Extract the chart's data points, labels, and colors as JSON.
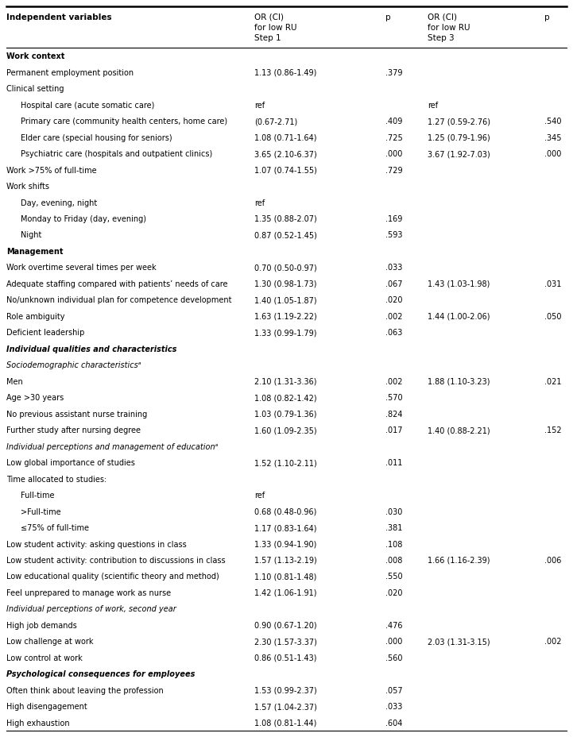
{
  "col_headers": [
    "Independent variables",
    "OR (CI)\nfor low RU\nStep 1",
    "p",
    "OR (CI)\nfor low RU\nStep 3",
    "p"
  ],
  "rows": [
    {
      "label": "Work context",
      "style": "bold",
      "indent": 0,
      "or1": "",
      "p1": "",
      "or3": "",
      "p3": ""
    },
    {
      "label": "Permanent employment position",
      "style": "normal",
      "indent": 0,
      "or1": "1.13 (0.86-1.49)",
      "p1": ".379",
      "or3": "",
      "p3": ""
    },
    {
      "label": "Clinical setting",
      "style": "normal",
      "indent": 0,
      "or1": "",
      "p1": "",
      "or3": "",
      "p3": ""
    },
    {
      "label": "Hospital care (acute somatic care)",
      "style": "normal",
      "indent": 1,
      "or1": "ref",
      "p1": "",
      "or3": "ref",
      "p3": ""
    },
    {
      "label": "Primary care (community health centers, home care)",
      "style": "normal",
      "indent": 1,
      "or1": "(0.67-2.71)",
      "p1": ".409",
      "or3": "1.27 (0.59-2.76)",
      "p3": ".540"
    },
    {
      "label": "Elder care (special housing for seniors)",
      "style": "normal",
      "indent": 1,
      "or1": "1.08 (0.71-1.64)",
      "p1": ".725",
      "or3": "1.25 (0.79-1.96)",
      "p3": ".345"
    },
    {
      "label": "Psychiatric care (hospitals and outpatient clinics)",
      "style": "normal",
      "indent": 1,
      "or1": "3.65 (2.10-6.37)",
      "p1": ".000",
      "or3": "3.67 (1.92-7.03)",
      "p3": ".000"
    },
    {
      "label": "Work >75% of full-time",
      "style": "normal",
      "indent": 0,
      "or1": "1.07 (0.74-1.55)",
      "p1": ".729",
      "or3": "",
      "p3": ""
    },
    {
      "label": "Work shifts",
      "style": "normal",
      "indent": 0,
      "or1": "",
      "p1": "",
      "or3": "",
      "p3": ""
    },
    {
      "label": "Day, evening, night",
      "style": "normal",
      "indent": 1,
      "or1": "ref",
      "p1": "",
      "or3": "",
      "p3": ""
    },
    {
      "label": "Monday to Friday (day, evening)",
      "style": "normal",
      "indent": 1,
      "or1": "1.35 (0.88-2.07)",
      "p1": ".169",
      "or3": "",
      "p3": ""
    },
    {
      "label": "Night",
      "style": "normal",
      "indent": 1,
      "or1": "0.87 (0.52-1.45)",
      "p1": ".593",
      "or3": "",
      "p3": ""
    },
    {
      "label": "Management",
      "style": "bold",
      "indent": 0,
      "or1": "",
      "p1": "",
      "or3": "",
      "p3": ""
    },
    {
      "label": "Work overtime several times per week",
      "style": "normal",
      "indent": 0,
      "or1": "0.70 (0.50-0.97)",
      "p1": ".033",
      "or3": "",
      "p3": ""
    },
    {
      "label": "Adequate staffing compared with patients’ needs of care",
      "style": "normal",
      "indent": 0,
      "or1": "1.30 (0.98-1.73)",
      "p1": ".067",
      "or3": "1.43 (1.03-1.98)",
      "p3": ".031"
    },
    {
      "label": "No/unknown individual plan for competence development",
      "style": "normal",
      "indent": 0,
      "or1": "1.40 (1.05-1.87)",
      "p1": ".020",
      "or3": "",
      "p3": ""
    },
    {
      "label": "Role ambiguity",
      "style": "normal",
      "indent": 0,
      "or1": "1.63 (1.19-2.22)",
      "p1": ".002",
      "or3": "1.44 (1.00-2.06)",
      "p3": ".050"
    },
    {
      "label": "Deficient leadership",
      "style": "normal",
      "indent": 0,
      "or1": "1.33 (0.99-1.79)",
      "p1": ".063",
      "or3": "",
      "p3": ""
    },
    {
      "label": "Individual qualities and characteristics",
      "style": "bold-italic",
      "indent": 0,
      "or1": "",
      "p1": "",
      "or3": "",
      "p3": ""
    },
    {
      "label": "Sociodemographic characteristicsᵃ",
      "style": "italic",
      "indent": 0,
      "or1": "",
      "p1": "",
      "or3": "",
      "p3": ""
    },
    {
      "label": "Men",
      "style": "normal",
      "indent": 0,
      "or1": "2.10 (1.31-3.36)",
      "p1": ".002",
      "or3": "1.88 (1.10-3.23)",
      "p3": ".021"
    },
    {
      "label": "Age >30 years",
      "style": "normal",
      "indent": 0,
      "or1": "1.08 (0.82-1.42)",
      "p1": ".570",
      "or3": "",
      "p3": ""
    },
    {
      "label": "No previous assistant nurse training",
      "style": "normal",
      "indent": 0,
      "or1": "1.03 (0.79-1.36)",
      "p1": ".824",
      "or3": "",
      "p3": ""
    },
    {
      "label": "Further study after nursing degree",
      "style": "normal",
      "indent": 0,
      "or1": "1.60 (1.09-2.35)",
      "p1": ".017",
      "or3": "1.40 (0.88-2.21)",
      "p3": ".152"
    },
    {
      "label": "Individual perceptions and management of educationᵃ",
      "style": "italic",
      "indent": 0,
      "or1": "",
      "p1": "",
      "or3": "",
      "p3": ""
    },
    {
      "label": "Low global importance of studies",
      "style": "normal",
      "indent": 0,
      "or1": "1.52 (1.10-2.11)",
      "p1": ".011",
      "or3": "",
      "p3": ""
    },
    {
      "label": "Time allocated to studies:",
      "style": "normal",
      "indent": 0,
      "or1": "",
      "p1": "",
      "or3": "",
      "p3": ""
    },
    {
      "label": "Full-time",
      "style": "normal",
      "indent": 1,
      "or1": "ref",
      "p1": "",
      "or3": "",
      "p3": ""
    },
    {
      "label": ">Full-time",
      "style": "normal",
      "indent": 1,
      "or1": "0.68 (0.48-0.96)",
      "p1": ".030",
      "or3": "",
      "p3": ""
    },
    {
      "label": "≤75% of full-time",
      "style": "normal",
      "indent": 1,
      "or1": "1.17 (0.83-1.64)",
      "p1": ".381",
      "or3": "",
      "p3": ""
    },
    {
      "label": "Low student activity: asking questions in class",
      "style": "normal",
      "indent": 0,
      "or1": "1.33 (0.94-1.90)",
      "p1": ".108",
      "or3": "",
      "p3": ""
    },
    {
      "label": "Low student activity: contribution to discussions in class",
      "style": "normal",
      "indent": 0,
      "or1": "1.57 (1.13-2.19)",
      "p1": ".008",
      "or3": "1.66 (1.16-2.39)",
      "p3": ".006"
    },
    {
      "label": "Low educational quality (scientific theory and method)",
      "style": "normal",
      "indent": 0,
      "or1": "1.10 (0.81-1.48)",
      "p1": ".550",
      "or3": "",
      "p3": ""
    },
    {
      "label": "Feel unprepared to manage work as nurse",
      "style": "normal",
      "indent": 0,
      "or1": "1.42 (1.06-1.91)",
      "p1": ".020",
      "or3": "",
      "p3": ""
    },
    {
      "label": "Individual perceptions of work, second year",
      "style": "italic",
      "indent": 0,
      "or1": "",
      "p1": "",
      "or3": "",
      "p3": ""
    },
    {
      "label": "High job demands",
      "style": "normal",
      "indent": 0,
      "or1": "0.90 (0.67-1.20)",
      "p1": ".476",
      "or3": "",
      "p3": ""
    },
    {
      "label": "Low challenge at work",
      "style": "normal",
      "indent": 0,
      "or1": "2.30 (1.57-3.37)",
      "p1": ".000",
      "or3": "2.03 (1.31-3.15)",
      "p3": ".002"
    },
    {
      "label": "Low control at work",
      "style": "normal",
      "indent": 0,
      "or1": "0.86 (0.51-1.43)",
      "p1": ".560",
      "or3": "",
      "p3": ""
    },
    {
      "label": "Psychological consequences for employees",
      "style": "bold-italic",
      "indent": 0,
      "or1": "",
      "p1": "",
      "or3": "",
      "p3": ""
    },
    {
      "label": "Often think about leaving the profession",
      "style": "normal",
      "indent": 0,
      "or1": "1.53 (0.99-2.37)",
      "p1": ".057",
      "or3": "",
      "p3": ""
    },
    {
      "label": "High disengagement",
      "style": "normal",
      "indent": 0,
      "or1": "1.57 (1.04-2.37)",
      "p1": ".033",
      "or3": "",
      "p3": ""
    },
    {
      "label": "High exhaustion",
      "style": "normal",
      "indent": 0,
      "or1": "1.08 (0.81-1.44)",
      "p1": ".604",
      "or3": "",
      "p3": ""
    }
  ],
  "bg_color": "#ffffff",
  "text_color": "#000000",
  "font_size": 7.0,
  "header_font_size": 7.5
}
